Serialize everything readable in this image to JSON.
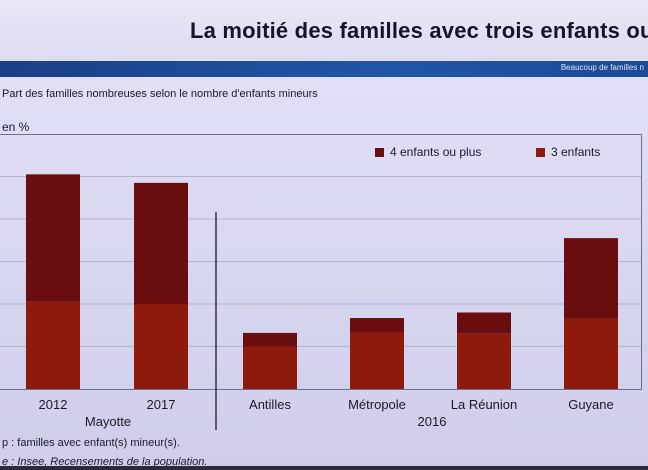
{
  "title": "La moitié des familles avec trois enfants ou pl",
  "band_text": "Beaucoup de familles n",
  "subtitle": "Part des familles nombreuses selon le nombre d'enfants mineurs",
  "unit": "en %",
  "colors": {
    "four_plus": "#6a0d0e",
    "three": "#8e1a0e"
  },
  "chart_data": {
    "type": "bar",
    "stacked": true,
    "categories": [
      "2012",
      "2017",
      "Antilles",
      "Métropole",
      "La Réunion",
      "Guyane"
    ],
    "groups": [
      {
        "label": "Mayotte",
        "categories": [
          "2012",
          "2017"
        ]
      },
      {
        "label": "2016",
        "categories": [
          "Antilles",
          "Métropole",
          "La Réunion",
          "Guyane"
        ]
      }
    ],
    "series": [
      {
        "name": "3 enfants",
        "values": [
          20.5,
          20.0,
          10.0,
          13.3,
          13.0,
          16.5
        ]
      },
      {
        "name": "4 enfants ou plus",
        "values": [
          30.0,
          28.5,
          3.2,
          3.4,
          5.0,
          19.0
        ]
      }
    ],
    "ylim": [
      0,
      60
    ],
    "grid": true,
    "legend_placement": "top-right"
  },
  "legend": {
    "four_plus": "4 enfants ou plus",
    "three": "3 enfants"
  },
  "notes": {
    "champ": "p : familles avec enfant(s) mineur(s).",
    "source": "e : Insee, Recensements de la population."
  }
}
